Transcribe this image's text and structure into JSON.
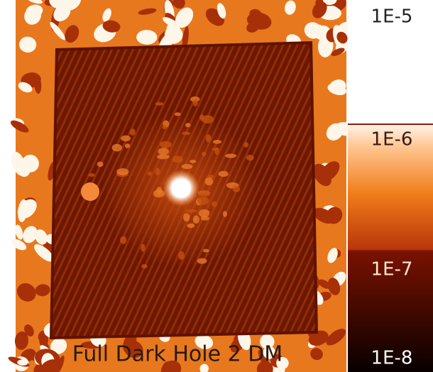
{
  "image": {
    "caption": "Full Dark Hole 2 DM"
  },
  "colorbar": {
    "ticks": [
      "1E-5",
      "1E-6",
      "1E-7",
      "1E-8"
    ]
  }
}
